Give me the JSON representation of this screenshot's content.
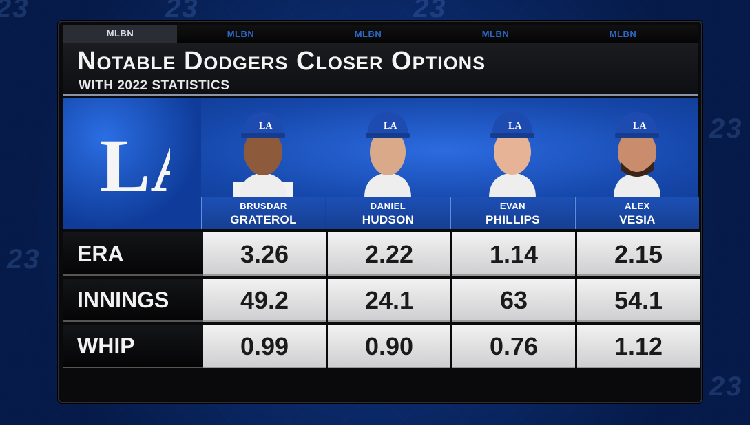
{
  "ticker": [
    "MLBN",
    "MLBN",
    "MLBN",
    "MLBN",
    "MLBN"
  ],
  "title": "Notable Dodgers Closer Options",
  "subtitle": "WITH 2022 STATISTICS",
  "logo": "LA",
  "colors": {
    "dodger_blue": "#1a4fb5",
    "panel": "#0a0a0c",
    "cell": "#e6e6e6"
  },
  "players": [
    {
      "first": "BRUSDAR",
      "last": "GRATEROL",
      "era": "3.26",
      "innings": "49.2",
      "whip": "0.99"
    },
    {
      "first": "DANIEL",
      "last": "HUDSON",
      "era": "2.22",
      "innings": "24.1",
      "whip": "0.90"
    },
    {
      "first": "EVAN",
      "last": "PHILLIPS",
      "era": "1.14",
      "innings": "63",
      "whip": "0.76"
    },
    {
      "first": "ALEX",
      "last": "VESIA",
      "era": "2.15",
      "innings": "54.1",
      "whip": "1.12"
    }
  ],
  "stat_labels": {
    "era": "ERA",
    "innings": "INNINGS",
    "whip": "WHIP"
  }
}
